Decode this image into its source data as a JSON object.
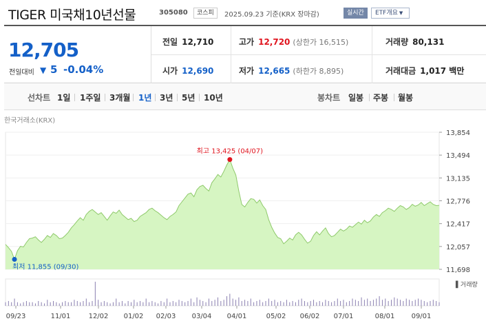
{
  "header": {
    "title": "TIGER 미국채10년선물",
    "code": "305080",
    "market": "코스피",
    "date": "2025.09.23 기준(KRX 장마감)",
    "realtime": "실시간",
    "etf_info": "ETF개요"
  },
  "summary": {
    "price": "12,705",
    "change_label": "전일대비",
    "change_value": "5",
    "change_pct": "-0.04%",
    "prev_close": {
      "label": "전일",
      "value": "12,710"
    },
    "open": {
      "label": "시가",
      "value": "12,690"
    },
    "high": {
      "label": "고가",
      "value": "12,720",
      "sub": "(상한가 16,515)"
    },
    "low": {
      "label": "저가",
      "value": "12,665",
      "sub": "(하한가 8,895)"
    },
    "volume": {
      "label": "거래량",
      "value": "80,131"
    },
    "amount": {
      "label": "거래대금",
      "value": "1,017 백만"
    }
  },
  "period_bar": {
    "line_label": "선차트",
    "periods": [
      "1일",
      "1주일",
      "3개월",
      "1년",
      "3년",
      "5년",
      "10년"
    ],
    "active": "1년",
    "candle_label": "봉차트",
    "candles": [
      "일봉",
      "주봉",
      "월봉"
    ]
  },
  "colors": {
    "accent": "#1460c8",
    "up": "#e0141e",
    "area_fill": "#d6f5c2",
    "area_line": "#8ec96a"
  },
  "chart_data": {
    "type": "area",
    "source": "한국거래소(KRX)",
    "ylim": [
      11698,
      13854
    ],
    "y_ticks": [
      "13,854",
      "13,494",
      "13,135",
      "12,776",
      "12,417",
      "12,057",
      "11,698"
    ],
    "x_ticks": [
      "09/23",
      "11/01",
      "12/02",
      "01/02",
      "02/03",
      "03/04",
      "04/01",
      "05/02",
      "06/02",
      "07/01",
      "08/01",
      "09/01"
    ],
    "high_annotation": "최고 13,425 (04/07)",
    "low_annotation": "최저 11,855 (09/30)",
    "volume_legend": "거래량",
    "values": [
      12090,
      12040,
      11980,
      11855,
      11990,
      12060,
      12050,
      12120,
      12180,
      12190,
      12210,
      12160,
      12120,
      12170,
      12230,
      12200,
      12260,
      12230,
      12180,
      12190,
      12230,
      12280,
      12350,
      12400,
      12460,
      12510,
      12470,
      12560,
      12610,
      12640,
      12600,
      12560,
      12590,
      12530,
      12470,
      12540,
      12600,
      12580,
      12630,
      12560,
      12520,
      12480,
      12500,
      12450,
      12470,
      12530,
      12560,
      12590,
      12640,
      12660,
      12620,
      12590,
      12550,
      12510,
      12480,
      12530,
      12560,
      12600,
      12700,
      12760,
      12820,
      12880,
      12900,
      12840,
      12950,
      13000,
      13020,
      12970,
      12930,
      13060,
      13120,
      13190,
      13150,
      13240,
      13340,
      13425,
      13290,
      13180,
      12930,
      12720,
      12680,
      12750,
      12810,
      12800,
      12740,
      12790,
      12700,
      12640,
      12480,
      12360,
      12270,
      12200,
      12180,
      12100,
      12140,
      12190,
      12160,
      12240,
      12280,
      12240,
      12170,
      12110,
      12140,
      12230,
      12290,
      12240,
      12300,
      12350,
      12260,
      12210,
      12230,
      12280,
      12330,
      12300,
      12330,
      12380,
      12360,
      12400,
      12440,
      12410,
      12470,
      12430,
      12460,
      12520,
      12560,
      12530,
      12590,
      12620,
      12660,
      12640,
      12610,
      12660,
      12700,
      12680,
      12640,
      12670,
      12720,
      12690,
      12710,
      12750,
      12700,
      12730,
      12760,
      12720,
      12700,
      12705
    ],
    "volume": [
      3,
      4,
      3,
      6,
      3,
      2,
      3,
      4,
      3,
      3,
      2,
      4,
      3,
      2,
      5,
      3,
      4,
      3,
      2,
      3,
      4,
      3,
      3,
      5,
      4,
      3,
      4,
      6,
      3,
      4,
      20,
      5,
      3,
      4,
      3,
      2,
      3,
      6,
      3,
      4,
      2,
      4,
      3,
      5,
      3,
      4,
      3,
      6,
      3,
      4,
      3,
      2,
      4,
      3,
      6,
      3,
      4,
      3,
      5,
      4,
      3,
      4,
      6,
      3,
      7,
      5,
      4,
      3,
      6,
      4,
      5,
      7,
      4,
      5,
      8,
      10,
      6,
      5,
      7,
      4,
      5,
      4,
      6,
      3,
      4,
      5,
      3,
      4,
      6,
      4,
      5,
      3,
      4,
      3,
      5,
      3,
      4,
      3,
      5,
      6,
      4,
      3,
      4,
      5,
      3,
      4,
      3,
      5,
      4,
      3,
      4,
      6,
      4,
      5,
      3,
      4,
      6,
      5,
      4,
      7,
      5,
      6,
      4,
      5,
      6,
      8,
      5,
      6,
      4,
      5,
      7,
      6,
      5,
      4,
      6,
      5,
      4,
      5,
      6,
      5,
      4,
      3,
      4,
      5,
      4,
      3
    ]
  }
}
